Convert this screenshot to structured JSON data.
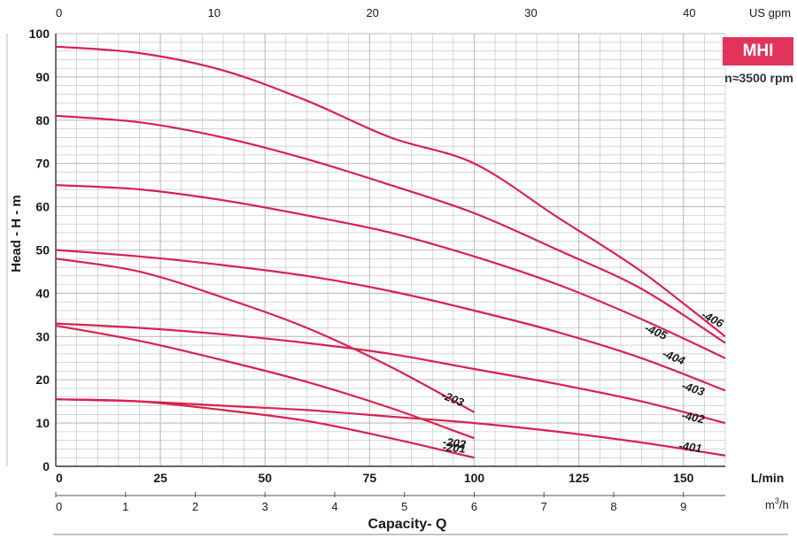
{
  "colors": {
    "curve": "#d8224f",
    "grid": "#bdbdbd",
    "badge": "#e2335a"
  },
  "badge": {
    "text": "MHI"
  },
  "speed_label": "n≈3500 rpm",
  "chart_data": {
    "type": "line",
    "title": "",
    "xlabel": "Capacity- Q",
    "ylabel": "Head - H - m",
    "xlim": [
      0,
      160
    ],
    "ylim": [
      0,
      100
    ],
    "x_unit": "L/min",
    "y_ticks": [
      0,
      10,
      20,
      30,
      40,
      50,
      60,
      70,
      80,
      90,
      100
    ],
    "x_ticks": [
      0,
      25,
      50,
      75,
      100,
      125,
      150
    ],
    "top_axis": {
      "unit": "US gpm",
      "ticks": [
        0,
        10,
        20,
        30,
        40
      ]
    },
    "m3h_axis": {
      "unit": "m3/h",
      "ticks": [
        0,
        1,
        2,
        3,
        4,
        5,
        6,
        7,
        8,
        9
      ]
    },
    "grid": true,
    "series": [
      {
        "name": "-406",
        "x": [
          0,
          20,
          40,
          60,
          80,
          100,
          120,
          140,
          160
        ],
        "y": [
          97,
          95.5,
          91.5,
          84.5,
          76,
          70,
          57.5,
          45,
          30
        ]
      },
      {
        "name": "-405",
        "x": [
          0,
          20,
          40,
          60,
          80,
          100,
          120,
          140,
          160
        ],
        "y": [
          81,
          79.5,
          76,
          71,
          65,
          58.5,
          50,
          41,
          28.5
        ]
      },
      {
        "name": "-404",
        "x": [
          0,
          20,
          40,
          60,
          80,
          100,
          120,
          140,
          160
        ],
        "y": [
          65,
          64,
          61.5,
          58,
          54,
          48.5,
          42,
          34,
          25
        ]
      },
      {
        "name": "-403",
        "x": [
          0,
          20,
          40,
          60,
          80,
          100,
          120,
          140,
          160
        ],
        "y": [
          50,
          48.5,
          46.5,
          44,
          40.5,
          36,
          31,
          25,
          17.5
        ]
      },
      {
        "name": "-402",
        "x": [
          0,
          20,
          40,
          60,
          80,
          100,
          120,
          140,
          160
        ],
        "y": [
          33,
          32,
          30.5,
          28.5,
          26,
          22.5,
          19,
          15,
          10
        ]
      },
      {
        "name": "-401",
        "x": [
          0,
          20,
          40,
          60,
          80,
          100,
          120,
          140,
          160
        ],
        "y": [
          15.5,
          15,
          14,
          13,
          11.5,
          10,
          8,
          5.5,
          2.5
        ]
      },
      {
        "name": "-203",
        "x": [
          0,
          20,
          40,
          60,
          80,
          100
        ],
        "y": [
          48,
          45,
          39,
          32,
          23,
          12.5
        ]
      },
      {
        "name": "-202",
        "x": [
          0,
          20,
          40,
          60,
          80,
          100
        ],
        "y": [
          32.5,
          29,
          24.5,
          19.5,
          13.5,
          6.5
        ]
      },
      {
        "name": "-201",
        "x": [
          0,
          20,
          40,
          60,
          80,
          100
        ],
        "y": [
          15.5,
          15,
          13,
          10.5,
          6.5,
          2
        ]
      }
    ]
  }
}
